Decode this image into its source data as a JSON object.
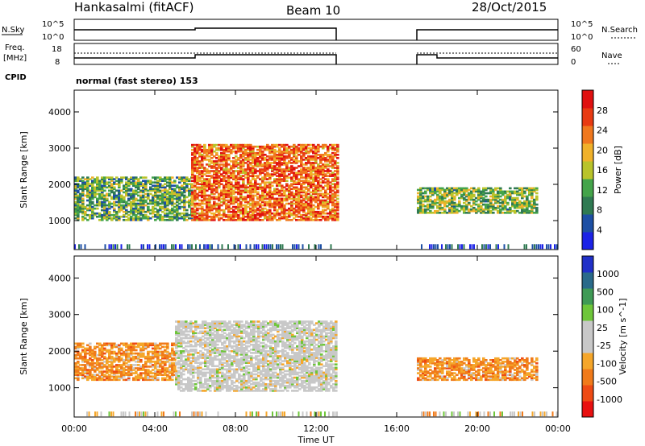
{
  "header": {
    "station": "Hankasalmi (fitACF)",
    "beam": "Beam 10",
    "date": "28/Oct/2015"
  },
  "status_panels": {
    "nsky_label": "N.Sky",
    "nsky_ticks": [
      "10^5",
      "10^0"
    ],
    "nsearch_label": "N.Search",
    "nsearch_ticks": [
      "10^5",
      "10^0"
    ],
    "freq_label_1": "Freq.",
    "freq_label_2": "[MHz]",
    "freq_ticks": [
      "18",
      "8"
    ],
    "nave_label": "Nave",
    "nave_ticks": [
      "60",
      "0"
    ],
    "cpid_label": "CPID",
    "cpid_value": "normal (fast stereo) 153"
  },
  "colors": {
    "power_scale": [
      "#1b22e6",
      "#1d4fa4",
      "#2f7a52",
      "#44a44a",
      "#b9c32a",
      "#f0b12a",
      "#f0781e",
      "#e83a12",
      "#e01010"
    ],
    "velocity_scale": [
      "#e81010",
      "#ee4a14",
      "#f07a1a",
      "#f5a62a",
      "#c8c8c8",
      "#c8c8c8",
      "#6ec63a",
      "#3f9a55",
      "#2a6a8a",
      "#2030c8"
    ],
    "ground_scatter": "#c8c8c8"
  },
  "chart_data": [
    {
      "type": "heatmap",
      "panel": "power",
      "ylabel": "Slant Range [km]",
      "yticks": [
        "1000",
        "2000",
        "3000",
        "4000"
      ],
      "ylim": [
        200,
        4600
      ],
      "xlim": [
        0,
        24
      ],
      "colorbar_label": "Power [dB]",
      "colorbar_ticks": [
        "4",
        "8",
        "12",
        "16",
        "20",
        "24",
        "28"
      ],
      "data_gap_hours": [
        13.0,
        17.0
      ],
      "regions": [
        {
          "t0": 0.0,
          "t1": 5.8,
          "r0": 1000,
          "r1": 2200,
          "db": 12
        },
        {
          "t0": 5.8,
          "t1": 13.0,
          "r0": 1000,
          "r1": 3100,
          "db": 24
        },
        {
          "t0": 17.0,
          "t1": 23.0,
          "r0": 1200,
          "r1": 1900,
          "db": 14
        }
      ]
    },
    {
      "type": "heatmap",
      "panel": "velocity",
      "ylabel": "Slant Range [km]",
      "yticks": [
        "1000",
        "2000",
        "3000",
        "4000"
      ],
      "ylim": [
        200,
        4600
      ],
      "xlim": [
        0,
        24
      ],
      "colorbar_label": "Velocity [m s^-1]",
      "colorbar_ticks": [
        "1000",
        "500",
        "100",
        "25",
        "-25",
        "-100",
        "-500",
        "-1000"
      ],
      "data_gap_hours": [
        13.0,
        17.0
      ],
      "regions": [
        {
          "t0": 0.0,
          "t1": 5.0,
          "r0": 1200,
          "r1": 2200,
          "vel": -200
        },
        {
          "t0": 5.0,
          "t1": 13.0,
          "r0": 900,
          "r1": 2800,
          "vel": 0
        },
        {
          "t0": 17.0,
          "t1": 23.0,
          "r0": 1200,
          "r1": 1800,
          "vel": -150
        }
      ]
    }
  ],
  "time_axis": {
    "ticks": [
      "00:00",
      "04:00",
      "08:00",
      "12:00",
      "16:00",
      "20:00",
      "00:00"
    ],
    "xlabel": "Time UT"
  }
}
